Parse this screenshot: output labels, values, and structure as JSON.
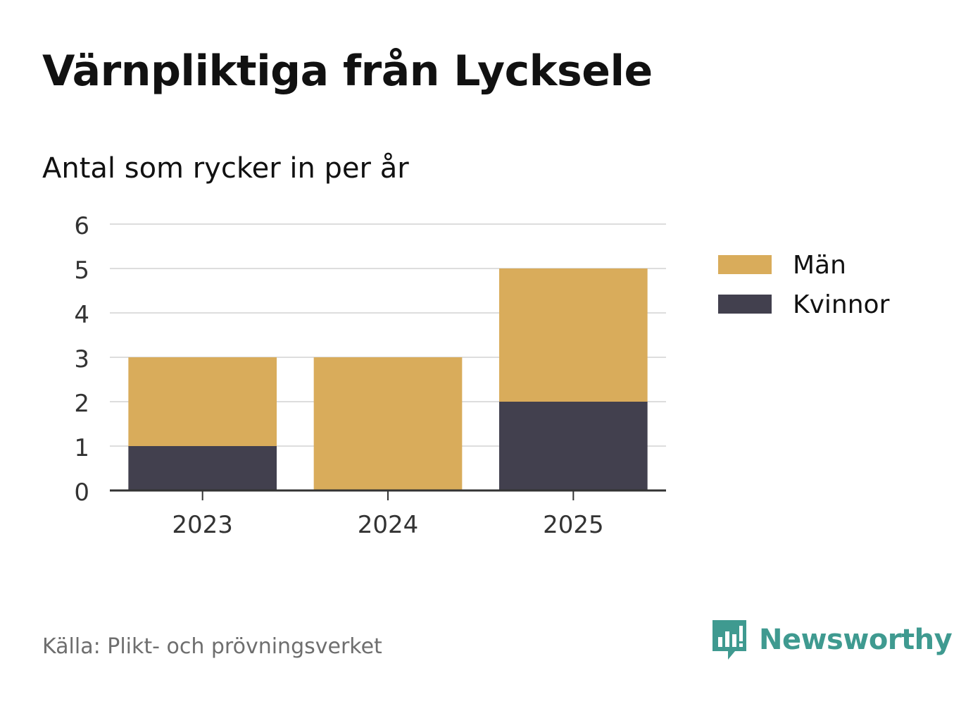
{
  "header": {
    "title": "Värnpliktiga från Lycksele",
    "subtitle": "Antal som rycker in per år"
  },
  "chart_data": {
    "type": "bar",
    "stacked": true,
    "categories": [
      "2023",
      "2024",
      "2025"
    ],
    "series": [
      {
        "name": "Kvinnor",
        "values": [
          1,
          0,
          2
        ],
        "color": "#42404e"
      },
      {
        "name": "Män",
        "values": [
          2,
          3,
          3
        ],
        "color": "#d9ac5b"
      }
    ],
    "ylim": [
      0,
      6
    ],
    "yticks": [
      0,
      1,
      2,
      3,
      4,
      5,
      6
    ],
    "grid": true,
    "legend": {
      "placement": "right",
      "entries": [
        {
          "label": "Män",
          "color": "#d9ac5b"
        },
        {
          "label": "Kvinnor",
          "color": "#42404e"
        }
      ]
    }
  },
  "footer": {
    "source": "Källa: Plikt- och prövningsverket",
    "brand": "Newsworthy",
    "brand_icon": "newsworthy-logo-icon",
    "brand_color": "#3f9a90"
  }
}
